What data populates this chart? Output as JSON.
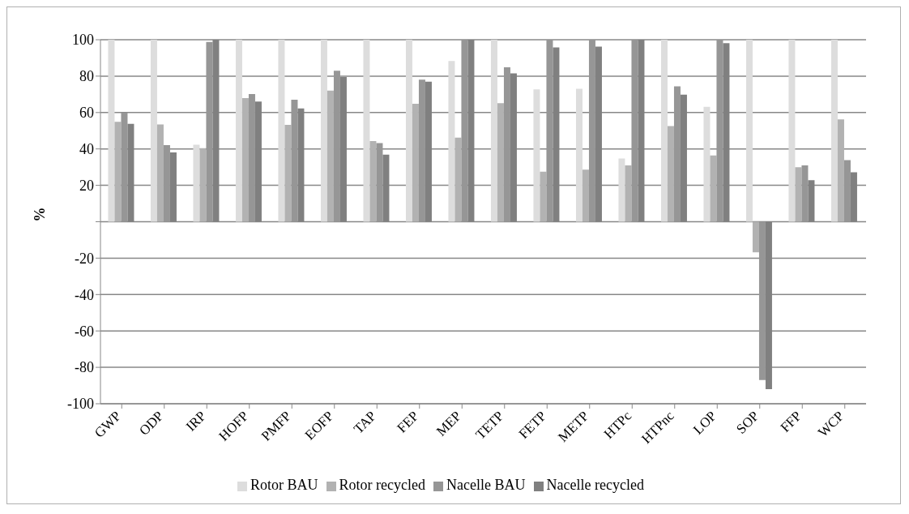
{
  "chart_data": {
    "type": "bar",
    "ylabel": "%",
    "categories": [
      "GWP",
      "ODP",
      "IRP",
      "HOFP",
      "PMFP",
      "EOFP",
      "TAP",
      "FEP",
      "MEP",
      "TETP",
      "FETP",
      "METP",
      "HTPc",
      "HTPnc",
      "LOP",
      "SOP",
      "FFP",
      "WCP"
    ],
    "series": [
      {
        "name": "Rotor BAU",
        "color": "#dddddd",
        "values": [
          100,
          100,
          42.3,
          100,
          100,
          100,
          100,
          100,
          88.3,
          100,
          72.7,
          73,
          34.7,
          100,
          63.1,
          100,
          100,
          100
        ]
      },
      {
        "name": "Rotor recycled",
        "color": "#b2b2b2",
        "values": [
          54.9,
          53.5,
          40.4,
          67.9,
          53.2,
          72.1,
          44.3,
          64.8,
          46.2,
          65.1,
          27.5,
          28.6,
          31,
          52.6,
          36.4,
          -16.8,
          29.9,
          56.2
        ]
      },
      {
        "name": "Nacelle BAU",
        "color": "#969696",
        "values": [
          59.9,
          42.1,
          98.8,
          70.2,
          67,
          83,
          43.2,
          78.1,
          100,
          84.9,
          100,
          100,
          100,
          74.4,
          100,
          -87,
          31,
          33.9
        ]
      },
      {
        "name": "Nacelle recycled",
        "color": "#808080",
        "values": [
          53.8,
          38.1,
          100,
          66,
          62.2,
          79.5,
          36.9,
          76.9,
          100,
          81.5,
          95.8,
          96.2,
          100,
          69.8,
          98.1,
          -92,
          22.8,
          27.2
        ]
      }
    ],
    "ylim": [
      -100,
      100
    ],
    "yticks": [
      -100,
      -80,
      -60,
      -40,
      -20,
      {
        "value": 0,
        "label": null
      },
      20,
      40,
      60,
      80,
      100
    ],
    "grid": "y",
    "legend": "bottom"
  }
}
